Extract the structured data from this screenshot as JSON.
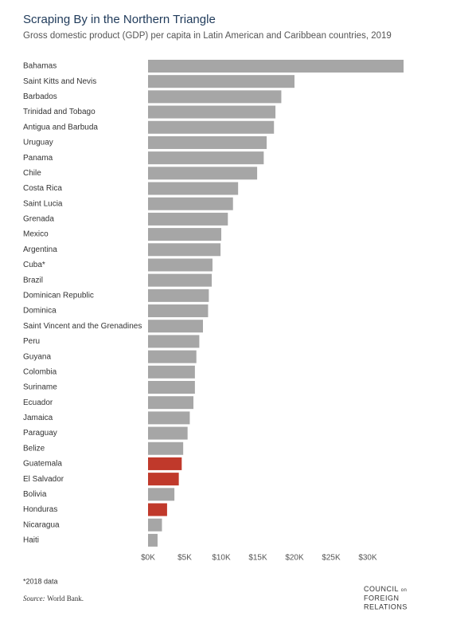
{
  "chart_data": {
    "type": "bar",
    "orientation": "horizontal",
    "title": "Scraping By in the Northern Triangle",
    "subtitle": "Gross domestic product (GDP) per capita in Latin American and Caribbean countries, 2019",
    "categories": [
      "Bahamas",
      "Saint Kitts and Nevis",
      "Barbados",
      "Trinidad and Tobago",
      "Antigua and Barbuda",
      "Uruguay",
      "Panama",
      "Chile",
      "Costa Rica",
      "Saint Lucia",
      "Grenada",
      "Mexico",
      "Argentina",
      "Cuba*",
      "Brazil",
      "Dominican Republic",
      "Dominica",
      "Saint Vincent and the Grenadines",
      "Peru",
      "Guyana",
      "Colombia",
      "Suriname",
      "Ecuador",
      "Jamaica",
      "Paraguay",
      "Belize",
      "Guatemala",
      "El Salvador",
      "Bolivia",
      "Honduras",
      "Nicaragua",
      "Haiti"
    ],
    "values": [
      34900,
      20000,
      18200,
      17400,
      17200,
      16200,
      15800,
      14900,
      12300,
      11600,
      10900,
      10000,
      9900,
      8800,
      8700,
      8300,
      8200,
      7500,
      7000,
      6600,
      6400,
      6400,
      6200,
      5700,
      5400,
      4800,
      4600,
      4200,
      3600,
      2600,
      1900,
      1300
    ],
    "colors": [
      "#a6a6a6",
      "#a6a6a6",
      "#a6a6a6",
      "#a6a6a6",
      "#a6a6a6",
      "#a6a6a6",
      "#a6a6a6",
      "#a6a6a6",
      "#a6a6a6",
      "#a6a6a6",
      "#a6a6a6",
      "#a6a6a6",
      "#a6a6a6",
      "#a6a6a6",
      "#a6a6a6",
      "#a6a6a6",
      "#a6a6a6",
      "#a6a6a6",
      "#a6a6a6",
      "#a6a6a6",
      "#a6a6a6",
      "#a6a6a6",
      "#a6a6a6",
      "#a6a6a6",
      "#a6a6a6",
      "#a6a6a6",
      "#c0392b",
      "#c0392b",
      "#a6a6a6",
      "#c0392b",
      "#a6a6a6",
      "#a6a6a6"
    ],
    "xlim": [
      0,
      35000
    ],
    "xticks": [
      {
        "value": 0,
        "label": "$0K"
      },
      {
        "value": 5000,
        "label": "$5K"
      },
      {
        "value": 10000,
        "label": "$10K"
      },
      {
        "value": 15000,
        "label": "$15K"
      },
      {
        "value": 20000,
        "label": "$20K"
      },
      {
        "value": 25000,
        "label": "$25K"
      },
      {
        "value": 30000,
        "label": "$30K"
      }
    ],
    "grid": false,
    "footnote": "*2018 data",
    "source": {
      "label": "Source:",
      "text": "World Bank."
    },
    "logo": [
      "COUNCIL",
      "on",
      "FOREIGN",
      "RELATIONS"
    ]
  }
}
